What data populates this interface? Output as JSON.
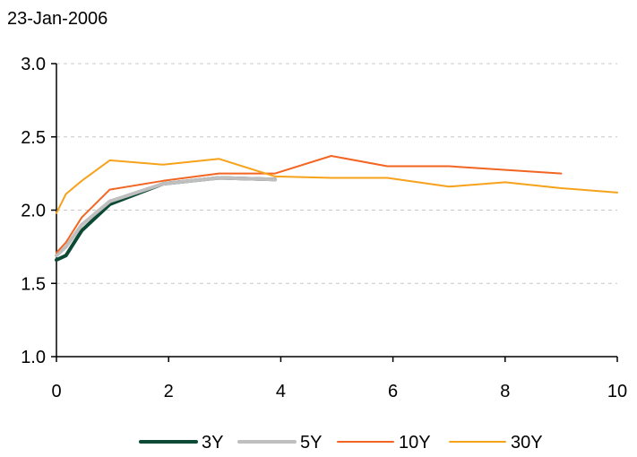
{
  "chart_data": {
    "type": "line",
    "title": "23-Jan-2006",
    "xlabel": "",
    "ylabel": "",
    "xlim": [
      0,
      10
    ],
    "ylim": [
      1.0,
      3.0
    ],
    "x_ticks": [
      "0",
      "2",
      "4",
      "6",
      "8",
      "10"
    ],
    "y_ticks": [
      "1.0",
      "1.5",
      "2.0",
      "2.5",
      "3.0"
    ],
    "grid": "horizontal dashed",
    "legend_position": "bottom",
    "series": [
      {
        "name": "3Y",
        "color": "#0d4a36",
        "x": [
          0,
          0.17,
          0.45,
          0.95,
          1.9,
          2.9,
          3.9
        ],
        "y": [
          1.66,
          1.69,
          1.86,
          2.04,
          2.18,
          2.22,
          2.21
        ]
      },
      {
        "name": "5Y",
        "color": "#bfbfbf",
        "x": [
          0,
          0.17,
          0.45,
          0.95,
          1.9,
          2.9,
          3.9
        ],
        "y": [
          1.69,
          1.75,
          1.9,
          2.06,
          2.18,
          2.22,
          2.21
        ]
      },
      {
        "name": "10Y",
        "color": "#f26522",
        "x": [
          0,
          0.17,
          0.45,
          0.95,
          1.9,
          2.9,
          3.9,
          4.9,
          5.9,
          7.0,
          9.0
        ],
        "y": [
          1.71,
          1.78,
          1.95,
          2.14,
          2.2,
          2.25,
          2.25,
          2.37,
          2.3,
          2.3,
          2.25
        ]
      },
      {
        "name": "30Y",
        "color": "#f7a21b",
        "x": [
          0,
          0.17,
          0.45,
          0.95,
          1.9,
          2.9,
          3.9,
          4.9,
          5.9,
          7.0,
          8.0,
          9.0,
          10.0
        ],
        "y": [
          1.98,
          2.11,
          2.2,
          2.34,
          2.31,
          2.35,
          2.23,
          2.22,
          2.22,
          2.16,
          2.19,
          2.15,
          2.12
        ]
      }
    ]
  }
}
